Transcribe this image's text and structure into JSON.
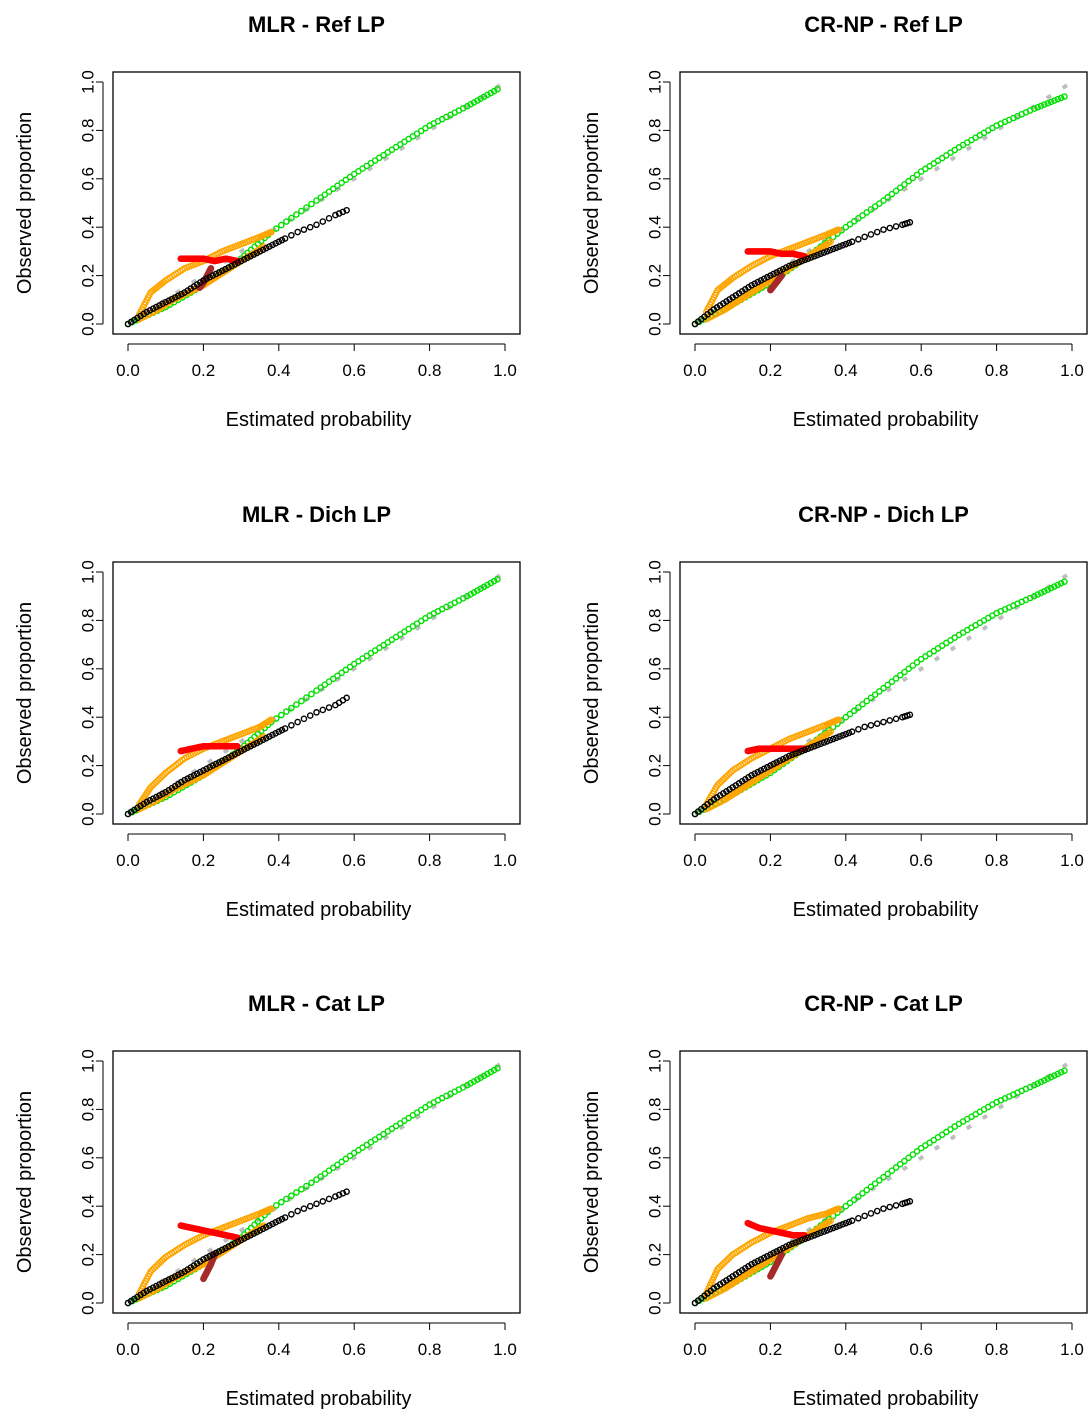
{
  "figure": {
    "series_colors": {
      "reference": "#bebebe",
      "green": "#00e000",
      "orange": "#ffa500",
      "red": "#ff0000",
      "brown": "#a52a2a",
      "black": "#000000"
    }
  },
  "chart_data": [
    {
      "type": "scatter",
      "title": "MLR - Ref LP",
      "xlabel": "Estimated probability",
      "ylabel": "Observed proportion",
      "xlim": [
        0,
        1
      ],
      "ylim": [
        0,
        1
      ],
      "xticks": [
        "0.0",
        "0.2",
        "0.4",
        "0.6",
        "0.8",
        "1.0"
      ],
      "yticks": [
        "0.0",
        "0.2",
        "0.4",
        "0.6",
        "0.8",
        "1.0"
      ],
      "grid": false,
      "series": [
        {
          "color": "green",
          "x": [
            0.0,
            0.1,
            0.2,
            0.3,
            0.38,
            0.5,
            0.6,
            0.7,
            0.8,
            0.9,
            0.98
          ],
          "y": [
            0.0,
            0.07,
            0.16,
            0.27,
            0.38,
            0.51,
            0.62,
            0.72,
            0.82,
            0.9,
            0.97
          ]
        },
        {
          "color": "orange",
          "x": [
            0.03,
            0.06,
            0.1,
            0.15,
            0.2,
            0.25,
            0.3,
            0.35,
            0.38
          ],
          "y": [
            0.04,
            0.13,
            0.18,
            0.23,
            0.26,
            0.3,
            0.33,
            0.36,
            0.38
          ]
        },
        {
          "color": "orange",
          "x": [
            0.03,
            0.08,
            0.12,
            0.16,
            0.2,
            0.24,
            0.28,
            0.32,
            0.36
          ],
          "y": [
            0.02,
            0.06,
            0.1,
            0.13,
            0.16,
            0.2,
            0.24,
            0.28,
            0.32
          ]
        },
        {
          "color": "red",
          "x": [
            0.14,
            0.17,
            0.2,
            0.23,
            0.26,
            0.29
          ],
          "y": [
            0.27,
            0.27,
            0.27,
            0.26,
            0.27,
            0.26
          ]
        },
        {
          "color": "brown",
          "x": [
            0.19,
            0.2,
            0.21,
            0.22
          ],
          "y": [
            0.15,
            0.17,
            0.2,
            0.23
          ]
        },
        {
          "color": "black",
          "x": [
            0.0,
            0.05,
            0.1,
            0.15,
            0.2,
            0.25,
            0.3,
            0.35,
            0.4,
            0.45,
            0.5,
            0.55,
            0.58
          ],
          "y": [
            0.0,
            0.05,
            0.09,
            0.13,
            0.18,
            0.22,
            0.26,
            0.3,
            0.34,
            0.38,
            0.41,
            0.45,
            0.47
          ]
        }
      ]
    },
    {
      "type": "scatter",
      "title": "CR-NP - Ref LP",
      "xlabel": "Estimated probability",
      "ylabel": "Observed proportion",
      "xlim": [
        0,
        1
      ],
      "ylim": [
        0,
        1
      ],
      "xticks": [
        "0.0",
        "0.2",
        "0.4",
        "0.6",
        "0.8",
        "1.0"
      ],
      "yticks": [
        "0.0",
        "0.2",
        "0.4",
        "0.6",
        "0.8",
        "1.0"
      ],
      "grid": false,
      "series": [
        {
          "color": "green",
          "x": [
            0.0,
            0.1,
            0.2,
            0.3,
            0.4,
            0.5,
            0.6,
            0.7,
            0.8,
            0.9,
            0.98
          ],
          "y": [
            0.0,
            0.08,
            0.17,
            0.28,
            0.4,
            0.51,
            0.63,
            0.73,
            0.82,
            0.89,
            0.94
          ]
        },
        {
          "color": "orange",
          "x": [
            0.03,
            0.06,
            0.1,
            0.15,
            0.2,
            0.25,
            0.3,
            0.35,
            0.38
          ],
          "y": [
            0.05,
            0.14,
            0.19,
            0.24,
            0.28,
            0.31,
            0.34,
            0.37,
            0.39
          ]
        },
        {
          "color": "orange",
          "x": [
            0.03,
            0.08,
            0.12,
            0.16,
            0.2,
            0.24,
            0.28,
            0.32,
            0.36
          ],
          "y": [
            0.02,
            0.06,
            0.1,
            0.14,
            0.18,
            0.22,
            0.26,
            0.3,
            0.34
          ]
        },
        {
          "color": "red",
          "x": [
            0.14,
            0.17,
            0.2,
            0.23,
            0.26,
            0.29
          ],
          "y": [
            0.3,
            0.3,
            0.3,
            0.29,
            0.29,
            0.28
          ]
        },
        {
          "color": "brown",
          "x": [
            0.2,
            0.21,
            0.22,
            0.23
          ],
          "y": [
            0.14,
            0.16,
            0.18,
            0.2
          ]
        },
        {
          "color": "black",
          "x": [
            0.0,
            0.05,
            0.1,
            0.15,
            0.2,
            0.25,
            0.3,
            0.35,
            0.4,
            0.45,
            0.5,
            0.55,
            0.57
          ],
          "y": [
            0.0,
            0.06,
            0.11,
            0.16,
            0.2,
            0.24,
            0.27,
            0.3,
            0.33,
            0.36,
            0.39,
            0.41,
            0.42
          ]
        }
      ]
    },
    {
      "type": "scatter",
      "title": "MLR - Dich LP",
      "xlabel": "Estimated probability",
      "ylabel": "Observed proportion",
      "xlim": [
        0,
        1
      ],
      "ylim": [
        0,
        1
      ],
      "xticks": [
        "0.0",
        "0.2",
        "0.4",
        "0.6",
        "0.8",
        "1.0"
      ],
      "yticks": [
        "0.0",
        "0.2",
        "0.4",
        "0.6",
        "0.8",
        "1.0"
      ],
      "grid": false,
      "series": [
        {
          "color": "green",
          "x": [
            0.0,
            0.1,
            0.2,
            0.3,
            0.38,
            0.5,
            0.6,
            0.7,
            0.8,
            0.9,
            0.98
          ],
          "y": [
            0.0,
            0.07,
            0.16,
            0.27,
            0.38,
            0.51,
            0.62,
            0.72,
            0.82,
            0.9,
            0.97
          ]
        },
        {
          "color": "orange",
          "x": [
            0.03,
            0.06,
            0.1,
            0.15,
            0.2,
            0.25,
            0.3,
            0.35,
            0.38
          ],
          "y": [
            0.04,
            0.11,
            0.17,
            0.23,
            0.27,
            0.3,
            0.33,
            0.36,
            0.39
          ]
        },
        {
          "color": "orange",
          "x": [
            0.03,
            0.08,
            0.12,
            0.16,
            0.2,
            0.24,
            0.28,
            0.32,
            0.36
          ],
          "y": [
            0.02,
            0.06,
            0.1,
            0.13,
            0.16,
            0.2,
            0.24,
            0.28,
            0.32
          ]
        },
        {
          "color": "red",
          "x": [
            0.14,
            0.17,
            0.2,
            0.23,
            0.26,
            0.29
          ],
          "y": [
            0.26,
            0.27,
            0.28,
            0.28,
            0.28,
            0.28
          ]
        },
        {
          "color": "black",
          "x": [
            0.0,
            0.05,
            0.1,
            0.15,
            0.2,
            0.25,
            0.3,
            0.35,
            0.4,
            0.45,
            0.5,
            0.55,
            0.58
          ],
          "y": [
            0.0,
            0.05,
            0.09,
            0.14,
            0.18,
            0.22,
            0.26,
            0.3,
            0.34,
            0.38,
            0.42,
            0.45,
            0.48
          ]
        }
      ]
    },
    {
      "type": "scatter",
      "title": "CR-NP - Dich LP",
      "xlabel": "Estimated probability",
      "ylabel": "Observed proportion",
      "xlim": [
        0,
        1
      ],
      "ylim": [
        0,
        1
      ],
      "xticks": [
        "0.0",
        "0.2",
        "0.4",
        "0.6",
        "0.8",
        "1.0"
      ],
      "yticks": [
        "0.0",
        "0.2",
        "0.4",
        "0.6",
        "0.8",
        "1.0"
      ],
      "grid": false,
      "series": [
        {
          "color": "green",
          "x": [
            0.0,
            0.1,
            0.2,
            0.3,
            0.4,
            0.5,
            0.6,
            0.7,
            0.8,
            0.9,
            0.98
          ],
          "y": [
            0.0,
            0.08,
            0.17,
            0.28,
            0.4,
            0.52,
            0.64,
            0.74,
            0.83,
            0.9,
            0.96
          ]
        },
        {
          "color": "orange",
          "x": [
            0.03,
            0.06,
            0.1,
            0.15,
            0.2,
            0.25,
            0.3,
            0.35,
            0.38
          ],
          "y": [
            0.04,
            0.12,
            0.18,
            0.23,
            0.27,
            0.31,
            0.34,
            0.37,
            0.39
          ]
        },
        {
          "color": "orange",
          "x": [
            0.03,
            0.08,
            0.12,
            0.16,
            0.2,
            0.24,
            0.28,
            0.32,
            0.36
          ],
          "y": [
            0.02,
            0.06,
            0.1,
            0.14,
            0.18,
            0.22,
            0.26,
            0.3,
            0.34
          ]
        },
        {
          "color": "red",
          "x": [
            0.14,
            0.17,
            0.2,
            0.23,
            0.26,
            0.29
          ],
          "y": [
            0.26,
            0.27,
            0.27,
            0.27,
            0.27,
            0.27
          ]
        },
        {
          "color": "black",
          "x": [
            0.0,
            0.05,
            0.1,
            0.15,
            0.2,
            0.25,
            0.3,
            0.35,
            0.4,
            0.45,
            0.5,
            0.55,
            0.57
          ],
          "y": [
            0.0,
            0.06,
            0.11,
            0.16,
            0.2,
            0.24,
            0.27,
            0.3,
            0.33,
            0.36,
            0.38,
            0.4,
            0.41
          ]
        }
      ]
    },
    {
      "type": "scatter",
      "title": "MLR - Cat LP",
      "xlabel": "Estimated probability",
      "ylabel": "Observed proportion",
      "xlim": [
        0,
        1
      ],
      "ylim": [
        0,
        1
      ],
      "xticks": [
        "0.0",
        "0.2",
        "0.4",
        "0.6",
        "0.8",
        "1.0"
      ],
      "yticks": [
        "0.0",
        "0.2",
        "0.4",
        "0.6",
        "0.8",
        "1.0"
      ],
      "grid": false,
      "series": [
        {
          "color": "green",
          "x": [
            0.0,
            0.1,
            0.2,
            0.3,
            0.38,
            0.5,
            0.6,
            0.7,
            0.8,
            0.9,
            0.98
          ],
          "y": [
            0.0,
            0.07,
            0.16,
            0.27,
            0.39,
            0.51,
            0.62,
            0.72,
            0.82,
            0.9,
            0.97
          ]
        },
        {
          "color": "orange",
          "x": [
            0.03,
            0.06,
            0.1,
            0.15,
            0.2,
            0.25,
            0.3,
            0.35,
            0.38
          ],
          "y": [
            0.04,
            0.13,
            0.19,
            0.24,
            0.28,
            0.31,
            0.34,
            0.37,
            0.39
          ]
        },
        {
          "color": "orange",
          "x": [
            0.03,
            0.08,
            0.12,
            0.16,
            0.2,
            0.24,
            0.28,
            0.32,
            0.36
          ],
          "y": [
            0.02,
            0.06,
            0.1,
            0.13,
            0.16,
            0.2,
            0.24,
            0.28,
            0.32
          ]
        },
        {
          "color": "red",
          "x": [
            0.14,
            0.17,
            0.2,
            0.23,
            0.26,
            0.29
          ],
          "y": [
            0.32,
            0.31,
            0.3,
            0.29,
            0.28,
            0.27
          ]
        },
        {
          "color": "brown",
          "x": [
            0.2,
            0.21,
            0.22,
            0.23
          ],
          "y": [
            0.1,
            0.13,
            0.16,
            0.2
          ]
        },
        {
          "color": "black",
          "x": [
            0.0,
            0.05,
            0.1,
            0.15,
            0.2,
            0.25,
            0.3,
            0.35,
            0.4,
            0.45,
            0.5,
            0.55,
            0.58
          ],
          "y": [
            0.0,
            0.05,
            0.09,
            0.13,
            0.18,
            0.22,
            0.26,
            0.3,
            0.34,
            0.38,
            0.41,
            0.44,
            0.46
          ]
        }
      ]
    },
    {
      "type": "scatter",
      "title": "CR-NP - Cat LP",
      "xlabel": "Estimated probability",
      "ylabel": "Observed proportion",
      "xlim": [
        0,
        1
      ],
      "ylim": [
        0,
        1
      ],
      "xticks": [
        "0.0",
        "0.2",
        "0.4",
        "0.6",
        "0.8",
        "1.0"
      ],
      "yticks": [
        "0.0",
        "0.2",
        "0.4",
        "0.6",
        "0.8",
        "1.0"
      ],
      "grid": false,
      "series": [
        {
          "color": "green",
          "x": [
            0.0,
            0.1,
            0.2,
            0.3,
            0.4,
            0.5,
            0.6,
            0.7,
            0.8,
            0.9,
            0.98
          ],
          "y": [
            0.0,
            0.08,
            0.17,
            0.28,
            0.4,
            0.52,
            0.64,
            0.74,
            0.83,
            0.9,
            0.96
          ]
        },
        {
          "color": "orange",
          "x": [
            0.03,
            0.06,
            0.1,
            0.15,
            0.2,
            0.25,
            0.3,
            0.35,
            0.38
          ],
          "y": [
            0.04,
            0.14,
            0.2,
            0.25,
            0.29,
            0.32,
            0.35,
            0.37,
            0.39
          ]
        },
        {
          "color": "orange",
          "x": [
            0.03,
            0.08,
            0.12,
            0.16,
            0.2,
            0.24,
            0.28,
            0.32,
            0.36
          ],
          "y": [
            0.02,
            0.06,
            0.1,
            0.14,
            0.18,
            0.22,
            0.26,
            0.3,
            0.34
          ]
        },
        {
          "color": "red",
          "x": [
            0.14,
            0.17,
            0.2,
            0.23,
            0.26,
            0.29
          ],
          "y": [
            0.33,
            0.31,
            0.3,
            0.29,
            0.28,
            0.28
          ]
        },
        {
          "color": "brown",
          "x": [
            0.2,
            0.21,
            0.22,
            0.23
          ],
          "y": [
            0.11,
            0.14,
            0.17,
            0.2
          ]
        },
        {
          "color": "black",
          "x": [
            0.0,
            0.05,
            0.1,
            0.15,
            0.2,
            0.25,
            0.3,
            0.35,
            0.4,
            0.45,
            0.5,
            0.55,
            0.57
          ],
          "y": [
            0.0,
            0.06,
            0.11,
            0.16,
            0.2,
            0.24,
            0.27,
            0.3,
            0.33,
            0.36,
            0.39,
            0.41,
            0.42
          ]
        }
      ]
    }
  ]
}
